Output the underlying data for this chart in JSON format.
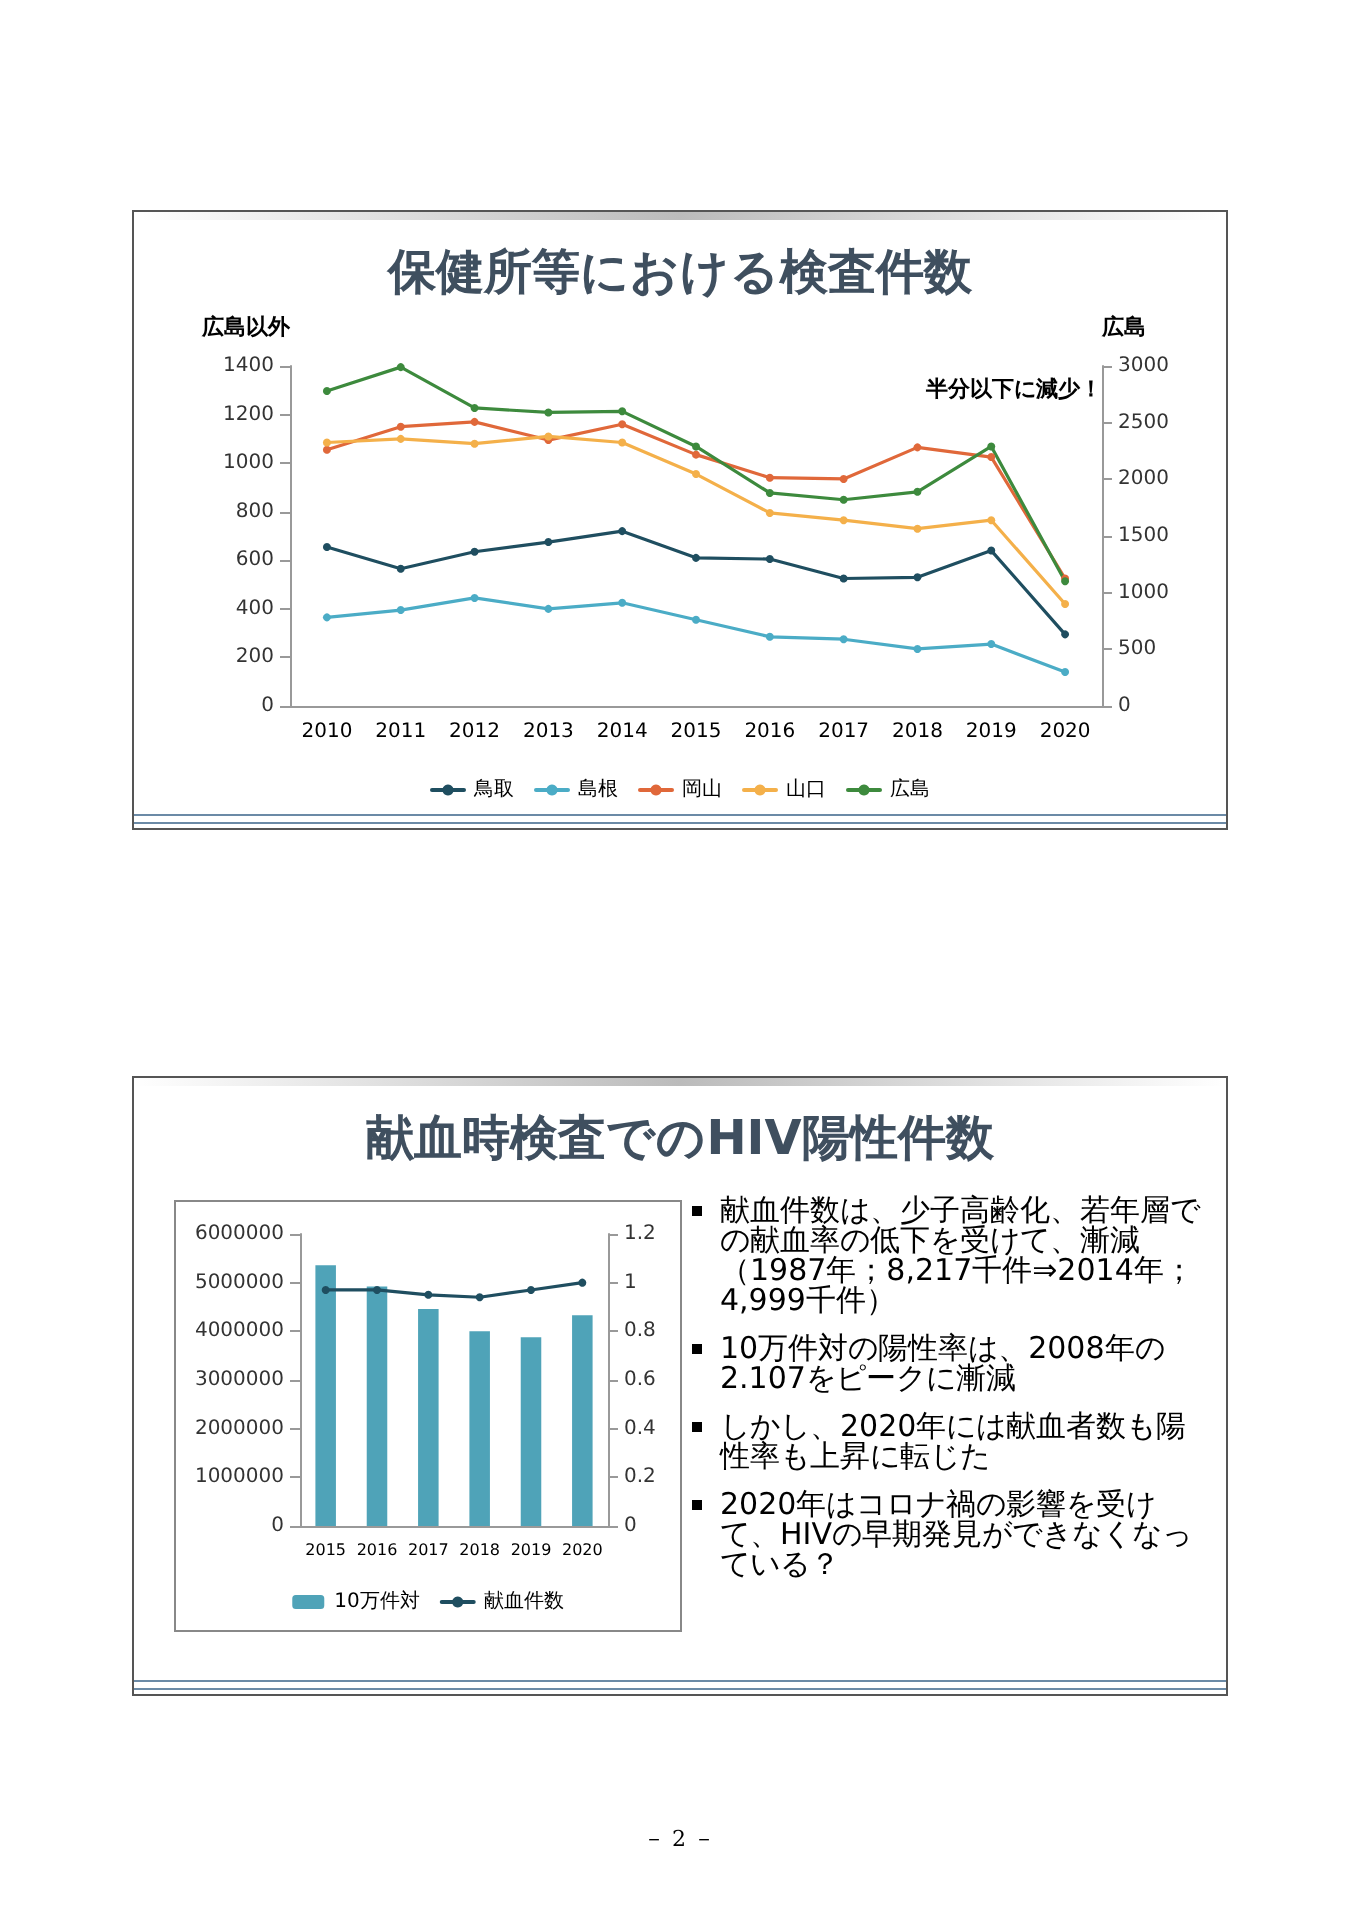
{
  "chart_data": [
    {
      "type": "line",
      "title": "保健所等における検査件数",
      "ylabel": "広島以外",
      "y2label": "広島",
      "categories": [
        "2010",
        "2011",
        "2012",
        "2013",
        "2014",
        "2015",
        "2016",
        "2017",
        "2018",
        "2019",
        "2020"
      ],
      "series": [
        {
          "name": "鳥取",
          "color": "#1f4e60",
          "values": [
            655,
            565,
            635,
            675,
            720,
            610,
            605,
            525,
            530,
            640,
            295
          ]
        },
        {
          "name": "島根",
          "color": "#4bacc6",
          "values": [
            365,
            395,
            445,
            400,
            425,
            355,
            285,
            275,
            235,
            255,
            140
          ]
        },
        {
          "name": "岡山",
          "color": "#e0683a",
          "values": [
            1055,
            1150,
            1170,
            1095,
            1160,
            1035,
            940,
            935,
            1065,
            1025,
            525
          ]
        },
        {
          "name": "山口",
          "color": "#f4b04a",
          "values": [
            1085,
            1100,
            1080,
            1110,
            1085,
            955,
            795,
            765,
            730,
            765,
            420
          ]
        },
        {
          "name": "広島",
          "color": "#3d8a3d",
          "axis": "y2",
          "values": [
            2780,
            2990,
            2630,
            2590,
            2600,
            2290,
            1880,
            1820,
            1890,
            2290,
            1100
          ]
        }
      ],
      "ylim": [
        0,
        1400
      ],
      "yticks": [
        0,
        200,
        400,
        600,
        800,
        1000,
        1200,
        1400
      ],
      "y2lim": [
        0,
        3000
      ],
      "y2ticks": [
        0,
        500,
        1000,
        1500,
        2000,
        2500,
        3000
      ],
      "annotations": [
        "半分以下に減少！"
      ],
      "legend": "bottom",
      "marker": "circle",
      "line_style": "solid",
      "grid": false
    },
    {
      "type": "bar",
      "title": "献血時検査でのHIV陽性件数",
      "categories": [
        "2015",
        "2016",
        "2017",
        "2018",
        "2019",
        "2020"
      ],
      "series": [
        {
          "name": "10万件対",
          "type": "bar",
          "color": "#4fa3b8",
          "values": [
            5360000,
            4920000,
            4460000,
            4000000,
            3880000,
            4330000
          ]
        },
        {
          "name": "献血件数",
          "type": "line",
          "axis": "y2",
          "color": "#1f4e60",
          "values": [
            0.97,
            0.97,
            0.95,
            0.94,
            0.97,
            1.0
          ]
        }
      ],
      "ylim": [
        0,
        6000000
      ],
      "yticks": [
        0,
        1000000,
        2000000,
        3000000,
        4000000,
        5000000,
        6000000
      ],
      "y2lim": [
        0,
        1.2
      ],
      "y2ticks": [
        0,
        0.2,
        0.4,
        0.6,
        0.8,
        1,
        1.2
      ],
      "legend": "bottom",
      "marker": "circle",
      "grid": false
    },
    {
      "type": "other",
      "annotations": [
        "献血件数は、少子高齢化、若年層での献血率の低下を受けて、漸減（1987年；8,217千件⇒2014年；4,999千件）",
        "10万件対の陽性率は、2008年の2.107をピークに漸減",
        "しかし、2020年には献血者数も陽性率も上昇に転じた",
        "2020年はコロナ禍の影響を受けて、HIVの早期発見ができなくなっている？"
      ]
    },
    {
      "type": "other",
      "annotations": [
        "－ 2 －"
      ]
    }
  ]
}
